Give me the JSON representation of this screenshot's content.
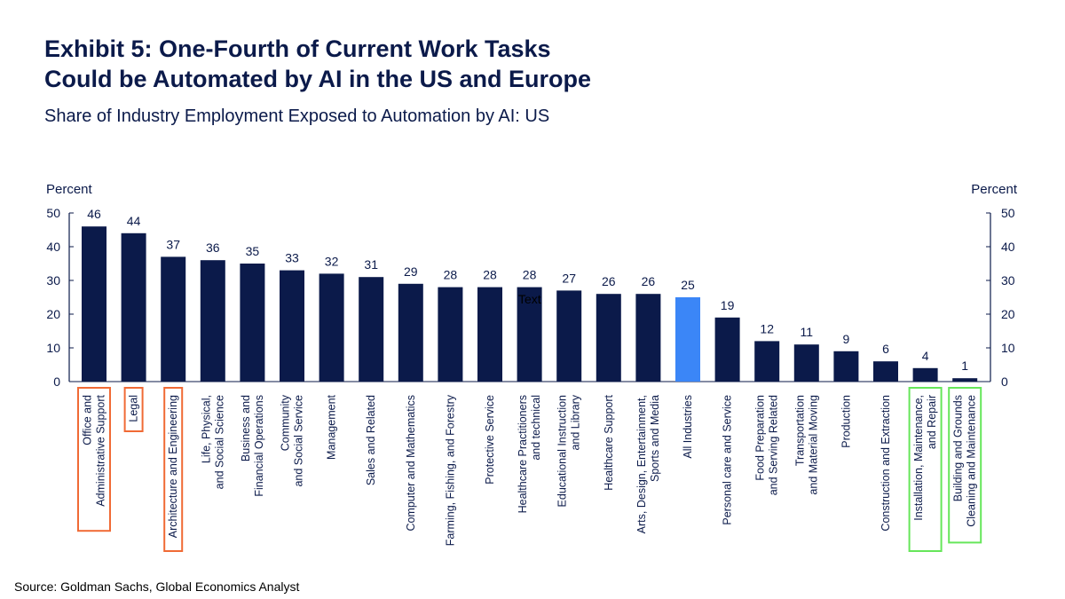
{
  "chart_data": {
    "type": "bar",
    "title": [
      "Exhibit 5: One-Fourth of Current Work Tasks",
      "Could be Automated by AI in the US and Europe"
    ],
    "subtitle": "Share of Industry Employment Exposed to Automation by AI: US",
    "ylabel_left": "Percent",
    "ylabel_right": "Percent",
    "ylim": [
      0,
      50
    ],
    "yticks": [
      "0",
      "10",
      "20",
      "30",
      "40",
      "50"
    ],
    "categories": [
      [
        "Office and",
        "Administrative Support"
      ],
      [
        "Legal"
      ],
      [
        "Architecture and Engineering"
      ],
      [
        "Life, Physical,",
        "and Social Science"
      ],
      [
        "Business and",
        "Financial Operations"
      ],
      [
        "Community",
        "and Social Service"
      ],
      [
        "Management"
      ],
      [
        "Sales and Related"
      ],
      [
        "Computer and Mathematics"
      ],
      [
        "Farming, Fishing, and Forestry"
      ],
      [
        "Protective Service"
      ],
      [
        "Healthcare Practitioners",
        "and technical"
      ],
      [
        "Educational Instruction",
        "and Library"
      ],
      [
        "Healthcare Support"
      ],
      [
        "Arts, Design, Entertainment,",
        "Sports and Media"
      ],
      [
        "All Industries"
      ],
      [
        "Personal care and Service"
      ],
      [
        "Food Preparation",
        "and Serving Related"
      ],
      [
        "Transportation",
        "and Material Moving"
      ],
      [
        "Production"
      ],
      [
        "Construction and Extraction"
      ],
      [
        "Installation, Maintenance,",
        "and Repair"
      ],
      [
        "Building and Grounds",
        "Cleaning and Maintenance"
      ]
    ],
    "values": [
      46,
      44,
      37,
      36,
      35,
      33,
      32,
      31,
      29,
      28,
      28,
      28,
      27,
      26,
      26,
      25,
      19,
      12,
      11,
      9,
      6,
      4,
      1
    ],
    "highlight_index": 15,
    "bar_color": "#0b1a4a",
    "highlight_color": "#3b86f7",
    "boxed_orange": [
      0,
      1,
      2
    ],
    "boxed_green": [
      21,
      22
    ],
    "orange_color": "#f06a35",
    "green_color": "#66e65a",
    "stray_text": "Text"
  },
  "source": "Source: Goldman Sachs, Global Economics Analyst"
}
